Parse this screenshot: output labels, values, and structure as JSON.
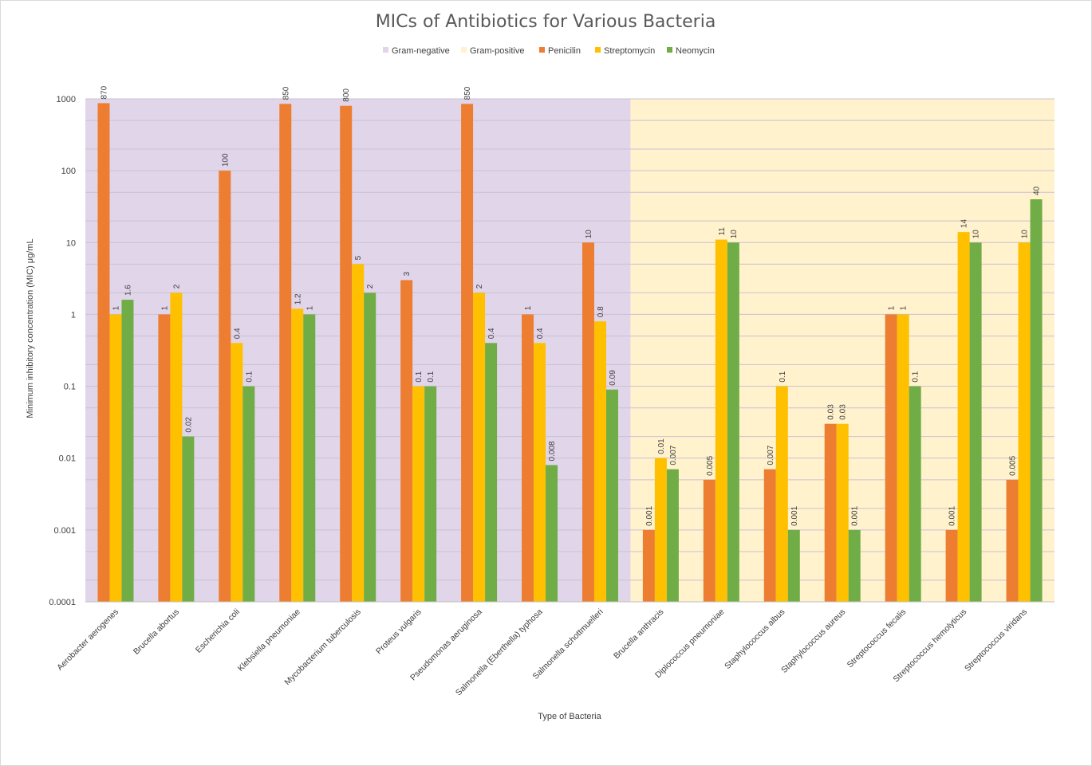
{
  "chart_data": {
    "type": "bar",
    "title": "MICs of Antibiotics for Various Bacteria",
    "xlabel": "Type of Bacteria",
    "ylabel": "Minimum inhibitory concentration (MIC) μg/mL",
    "yscale": "log",
    "ylim": [
      0.0001,
      1000
    ],
    "yticks": [
      "0.0001",
      "0.001",
      "0.01",
      "0.1",
      "1",
      "10",
      "100",
      "1000"
    ],
    "grid": true,
    "legend_position": "top",
    "legend": [
      {
        "name": "Gram-negative",
        "color": "#e1d5ea"
      },
      {
        "name": "Gram-positive",
        "color": "#fff2cc"
      },
      {
        "name": "Penicilin",
        "color": "#ed7d31"
      },
      {
        "name": "Streptomycin",
        "color": "#ffc000"
      },
      {
        "name": "Neomycin",
        "color": "#70ad47"
      }
    ],
    "categories": [
      "Aerobacter aerogenes",
      "Brucella abortus",
      "Escherichia coli",
      "Klebsiella pneumoniae",
      "Mycobacterium tuberculosis",
      "Proteus vulgaris",
      "Pseudomonas aeruginosa",
      "Salmonella (Eberthella) typhosa",
      "Salmonella schottmuelleri",
      "Brucella anthracis",
      "Diplococcus pneumoniae",
      "Staphylococcus albus",
      "Staphylococcus aureus",
      "Streptococcus fecalis",
      "Streptococcus hemolyticus",
      "Streptococcus viridans"
    ],
    "gram_stain": [
      "negative",
      "negative",
      "negative",
      "negative",
      "negative",
      "negative",
      "negative",
      "negative",
      "negative",
      "positive",
      "positive",
      "positive",
      "positive",
      "positive",
      "positive",
      "positive"
    ],
    "series": [
      {
        "name": "Penicilin",
        "color": "#ed7d31",
        "values": [
          870,
          1,
          100,
          850,
          800,
          3,
          850,
          1,
          10,
          0.001,
          0.005,
          0.007,
          0.03,
          1,
          0.001,
          0.005
        ]
      },
      {
        "name": "Streptomycin",
        "color": "#ffc000",
        "values": [
          1,
          2,
          0.4,
          1.2,
          5,
          0.1,
          2,
          0.4,
          0.8,
          0.01,
          11,
          0.1,
          0.03,
          1,
          14,
          10
        ]
      },
      {
        "name": "Neomycin",
        "color": "#70ad47",
        "values": [
          1.6,
          0.02,
          0.1,
          1,
          2,
          0.1,
          0.4,
          0.008,
          0.09,
          0.007,
          10,
          0.001,
          0.001,
          0.1,
          10,
          40
        ]
      }
    ],
    "data_labels": [
      [
        "870",
        "1",
        "1.6"
      ],
      [
        "1",
        "2",
        "0.02"
      ],
      [
        "100",
        "0.4",
        "0.1"
      ],
      [
        "850",
        "1.2",
        "1"
      ],
      [
        "800",
        "5",
        "2"
      ],
      [
        "3",
        "0.1",
        "0.1"
      ],
      [
        "850",
        "2",
        "0.4"
      ],
      [
        "1",
        "0.4",
        "0.008"
      ],
      [
        "10",
        "0.8",
        "0.09"
      ],
      [
        "0.001",
        "0.01",
        "0.007"
      ],
      [
        "0.005",
        "11",
        "10"
      ],
      [
        "0.007",
        "0.1",
        "0.001"
      ],
      [
        "0.03",
        "0.03",
        "0.001"
      ],
      [
        "1",
        "1",
        "0.1"
      ],
      [
        "0.001",
        "14",
        "10"
      ],
      [
        "0.005",
        "10",
        "40"
      ]
    ]
  }
}
